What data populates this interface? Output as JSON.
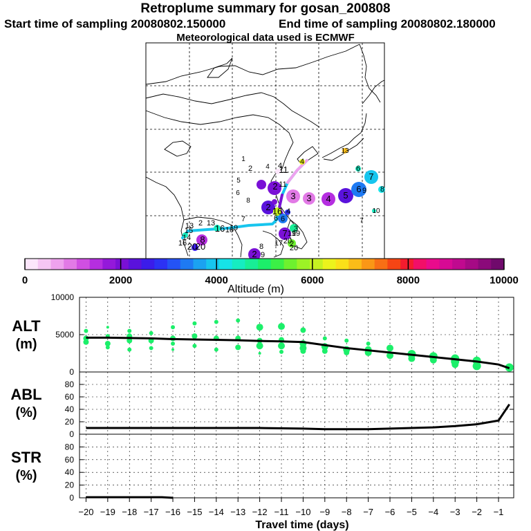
{
  "header": {
    "title": "Retroplume summary for gosan_200808",
    "start_label": "Start time of sampling 20080802.150000",
    "end_label": "End time of sampling 20080802.180000",
    "met_label": "Meteorological data used is ECMWF"
  },
  "colorbar": {
    "ticks": [
      "0",
      "2000",
      "4000",
      "6000",
      "8000",
      "10000"
    ],
    "label": "Altitude (m)",
    "colors": [
      "#fce6fb",
      "#f6c6f4",
      "#eea2ee",
      "#e27ae6",
      "#d04fe2",
      "#b52ee0",
      "#9419da",
      "#7a10d6",
      "#5a12dc",
      "#3b1cea",
      "#2c32f4",
      "#2453f6",
      "#1e7af3",
      "#1ba2f1",
      "#17c5ee",
      "#16e3e8",
      "#16ecc1",
      "#18ee96",
      "#1cef6a",
      "#3bf046",
      "#6ef12e",
      "#9cf226",
      "#c6f221",
      "#ecf31c",
      "#fbe019",
      "#fbbc18",
      "#fa9716",
      "#f86f15",
      "#f64514",
      "#f51c2e",
      "#f20f68",
      "#ea0b8c",
      "#d70a94",
      "#c00a8f",
      "#a60a85",
      "#8b0a7a",
      "#700a6c"
    ]
  },
  "map": {
    "labels": [
      "1",
      "2",
      "3",
      "4",
      "5",
      "6",
      "7",
      "8",
      "9",
      "10",
      "11",
      "12",
      "13",
      "14",
      "15",
      "16",
      "17",
      "18",
      "19",
      "20"
    ]
  },
  "chart_data": [
    {
      "type": "scatter",
      "name": "ALT",
      "ylabel": "ALT",
      "yunit": "(m)",
      "ylim": [
        0,
        10000
      ],
      "yticks": [
        "0",
        "5000",
        "10000"
      ],
      "line": {
        "x": [
          -20,
          -19,
          -18,
          -17,
          -16,
          -15,
          -14,
          -13,
          -12,
          -11,
          -10,
          -9,
          -8,
          -7,
          -6,
          -5,
          -4,
          -3,
          -2,
          -1,
          -0.5
        ],
        "values": [
          4600,
          4600,
          4550,
          4500,
          4400,
          4350,
          4300,
          4250,
          4150,
          4100,
          4000,
          3600,
          3200,
          2900,
          2600,
          2300,
          2000,
          1700,
          1400,
          1000,
          500
        ]
      },
      "points": [
        {
          "x": -20,
          "y": 5500,
          "s": 3
        },
        {
          "x": -20,
          "y": 4500,
          "s": 4
        },
        {
          "x": -20,
          "y": 4000,
          "s": 4
        },
        {
          "x": -19,
          "y": 6000,
          "s": 2
        },
        {
          "x": -19,
          "y": 4800,
          "s": 3
        },
        {
          "x": -19,
          "y": 3800,
          "s": 4
        },
        {
          "x": -19,
          "y": 3300,
          "s": 3
        },
        {
          "x": -18,
          "y": 5500,
          "s": 3
        },
        {
          "x": -18,
          "y": 4800,
          "s": 4
        },
        {
          "x": -18,
          "y": 4200,
          "s": 4
        },
        {
          "x": -18,
          "y": 3000,
          "s": 3
        },
        {
          "x": -17,
          "y": 5200,
          "s": 3
        },
        {
          "x": -17,
          "y": 4200,
          "s": 4
        },
        {
          "x": -17,
          "y": 3200,
          "s": 3
        },
        {
          "x": -16,
          "y": 6000,
          "s": 3
        },
        {
          "x": -16,
          "y": 4500,
          "s": 4
        },
        {
          "x": -16,
          "y": 3800,
          "s": 3
        },
        {
          "x": -16,
          "y": 3000,
          "s": 2
        },
        {
          "x": -15,
          "y": 6500,
          "s": 3
        },
        {
          "x": -15,
          "y": 4800,
          "s": 4
        },
        {
          "x": -15,
          "y": 3500,
          "s": 3
        },
        {
          "x": -14,
          "y": 6700,
          "s": 3
        },
        {
          "x": -14,
          "y": 4500,
          "s": 4
        },
        {
          "x": -14,
          "y": 3000,
          "s": 3
        },
        {
          "x": -13,
          "y": 6900,
          "s": 3
        },
        {
          "x": -13,
          "y": 4500,
          "s": 4
        },
        {
          "x": -13,
          "y": 3300,
          "s": 4
        },
        {
          "x": -12,
          "y": 6000,
          "s": 5
        },
        {
          "x": -12,
          "y": 4200,
          "s": 4
        },
        {
          "x": -12,
          "y": 3500,
          "s": 5
        },
        {
          "x": -12,
          "y": 2500,
          "s": 2
        },
        {
          "x": -11,
          "y": 6100,
          "s": 5
        },
        {
          "x": -11,
          "y": 4300,
          "s": 4
        },
        {
          "x": -11,
          "y": 3500,
          "s": 5
        },
        {
          "x": -11,
          "y": 2700,
          "s": 3
        },
        {
          "x": -10,
          "y": 5600,
          "s": 4
        },
        {
          "x": -10,
          "y": 3800,
          "s": 5
        },
        {
          "x": -10,
          "y": 3200,
          "s": 5
        },
        {
          "x": -10,
          "y": 2800,
          "s": 4
        },
        {
          "x": -9,
          "y": 4500,
          "s": 3
        },
        {
          "x": -9,
          "y": 3400,
          "s": 5
        },
        {
          "x": -9,
          "y": 2800,
          "s": 4
        },
        {
          "x": -8,
          "y": 4200,
          "s": 3
        },
        {
          "x": -8,
          "y": 3000,
          "s": 5
        },
        {
          "x": -8,
          "y": 2600,
          "s": 4
        },
        {
          "x": -7,
          "y": 3800,
          "s": 3
        },
        {
          "x": -7,
          "y": 3000,
          "s": 5
        },
        {
          "x": -7,
          "y": 2600,
          "s": 5
        },
        {
          "x": -6,
          "y": 3200,
          "s": 5
        },
        {
          "x": -6,
          "y": 2200,
          "s": 5
        },
        {
          "x": -5,
          "y": 2400,
          "s": 6
        },
        {
          "x": -5,
          "y": 1800,
          "s": 5
        },
        {
          "x": -4,
          "y": 2100,
          "s": 6
        },
        {
          "x": -4,
          "y": 1600,
          "s": 5
        },
        {
          "x": -3,
          "y": 1800,
          "s": 6
        },
        {
          "x": -3,
          "y": 1400,
          "s": 6
        },
        {
          "x": -3,
          "y": 1000,
          "s": 5
        },
        {
          "x": -2,
          "y": 1500,
          "s": 6
        },
        {
          "x": -2,
          "y": 800,
          "s": 6
        },
        {
          "x": -0.5,
          "y": 600,
          "s": 6
        }
      ]
    },
    {
      "type": "line",
      "name": "ABL",
      "ylabel": "ABL",
      "yunit": "(%)",
      "ylim": [
        0,
        100
      ],
      "yticks": [
        "0",
        "20",
        "40",
        "60",
        "80"
      ],
      "x": [
        -20,
        -18,
        -16,
        -14,
        -12,
        -10,
        -9,
        -8,
        -7,
        -6,
        -5,
        -4,
        -3,
        -2,
        -1,
        -0.5
      ],
      "values": [
        10,
        10,
        10,
        10,
        10,
        9,
        8,
        8,
        8,
        9,
        10,
        11,
        13,
        16,
        22,
        48
      ]
    },
    {
      "type": "line",
      "name": "STR",
      "ylabel": "STR",
      "yunit": "(%)",
      "ylim": [
        0,
        100
      ],
      "yticks": [
        "0",
        "20",
        "40",
        "60",
        "80"
      ],
      "x": [
        -20,
        -19,
        -18,
        -17,
        -16.5,
        -16
      ],
      "values": [
        1,
        1,
        1,
        1,
        1,
        0
      ]
    }
  ],
  "xaxis": {
    "ticks": [
      "−20",
      "−19",
      "−18",
      "−17",
      "−16",
      "−15",
      "−14",
      "−13",
      "−12",
      "−11",
      "−10",
      "−9",
      "−8",
      "−7",
      "−6",
      "−5",
      "−4",
      "−3",
      "−2",
      "−1"
    ],
    "tick_values": [
      -20,
      -19,
      -18,
      -17,
      -16,
      -15,
      -14,
      -13,
      -12,
      -11,
      -10,
      -9,
      -8,
      -7,
      -6,
      -5,
      -4,
      -3,
      -2,
      -1
    ],
    "label": "Travel time (days)"
  }
}
